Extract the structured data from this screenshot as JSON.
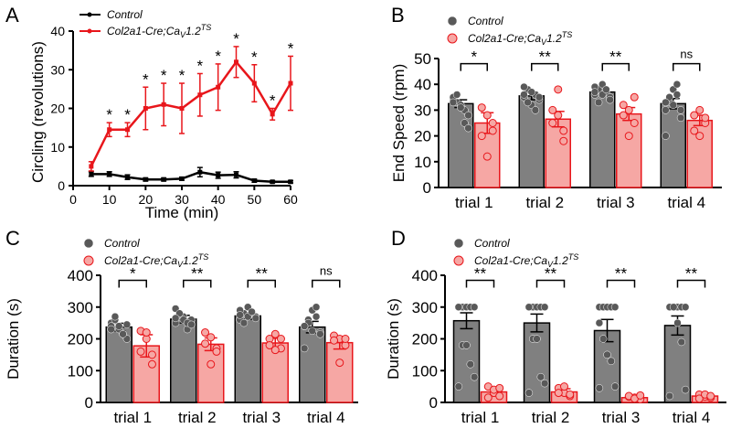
{
  "colors": {
    "control": "#000000",
    "mutant": "#e8161b",
    "control_bar": "#808080",
    "mutant_bar": "#f6a7a4",
    "dot_control": "#595959",
    "dot_mutant": "#e8161b"
  },
  "legend": {
    "control": "Control",
    "mutant": "Col2a1-Cre;Ca",
    "mutant_sub": "V",
    "mutant_rest": "1.2",
    "mutant_sup": "TS"
  },
  "chart_data": [
    {
      "panel": "A",
      "type": "line",
      "xlabel": "Time (min)",
      "ylabel": "Circling (revolutions)",
      "xlim": [
        0,
        60
      ],
      "ylim": [
        0,
        40
      ],
      "xticks": [
        "0",
        "10",
        "20",
        "30",
        "40",
        "50",
        "60"
      ],
      "yticks": [
        "0",
        "10",
        "20",
        "30",
        "40"
      ],
      "x": [
        5,
        10,
        15,
        20,
        25,
        30,
        35,
        40,
        45,
        50,
        55,
        60
      ],
      "series": [
        {
          "name": "Control",
          "values": [
            3,
            3,
            2.2,
            1.6,
            1.6,
            1.8,
            3.5,
            2.7,
            2.8,
            1.3,
            1,
            1
          ],
          "err": [
            0.6,
            0.6,
            0.6,
            0.4,
            0.4,
            0.4,
            1.2,
            0.8,
            0.8,
            0.4,
            0.3,
            0.3
          ]
        },
        {
          "name": "Col2a1-Cre;CaV1.2TS",
          "values": [
            5,
            14.5,
            14.5,
            20,
            21,
            20,
            23.5,
            25.5,
            32,
            26.5,
            18.5,
            26.5
          ],
          "err": [
            1.2,
            1.8,
            1.8,
            5.5,
            5.5,
            6.5,
            5.5,
            6,
            4,
            4.8,
            1.5,
            7
          ]
        }
      ],
      "annotations": [
        "",
        "*",
        "*",
        "*",
        "*",
        "*",
        "*",
        "*",
        "*",
        "*",
        "*",
        "*"
      ]
    },
    {
      "panel": "B",
      "type": "bar",
      "ylabel": "End Speed (rpm)",
      "ylim": [
        0,
        50
      ],
      "yticks": [
        "0",
        "10",
        "20",
        "30",
        "40",
        "50"
      ],
      "categories": [
        "trial 1",
        "trial 2",
        "trial 3",
        "trial 4"
      ],
      "series": [
        {
          "name": "Control",
          "values": [
            32.5,
            35.5,
            37,
            32.5
          ],
          "err": [
            1.5,
            1.5,
            1.2,
            2
          ]
        },
        {
          "name": "Col2a1-Cre;CaV1.2TS",
          "values": [
            25,
            26.5,
            28.5,
            26
          ],
          "err": [
            4,
            3,
            2.5,
            2
          ]
        }
      ],
      "significance": [
        "*",
        "**",
        "**",
        "ns"
      ],
      "points_control": [
        [
          34,
          33,
          32,
          30,
          28,
          35,
          36,
          31,
          25,
          23,
          33
        ],
        [
          35,
          38,
          32,
          36,
          34,
          39,
          33,
          37,
          30,
          35,
          36
        ],
        [
          36,
          38,
          40,
          37,
          35,
          39,
          33,
          36,
          38,
          34,
          37
        ],
        [
          30,
          33,
          38,
          36,
          27,
          20,
          35,
          32,
          40,
          30,
          33
        ]
      ],
      "points_mutant": [
        [
          31,
          28,
          22,
          20,
          12,
          25
        ],
        [
          30,
          28,
          22,
          25,
          38,
          18
        ],
        [
          32,
          30,
          25,
          28,
          20,
          35
        ],
        [
          28,
          30,
          25,
          22,
          20,
          27
        ]
      ]
    },
    {
      "panel": "C",
      "type": "bar",
      "ylabel": "Duration (s)",
      "ylim": [
        0,
        400
      ],
      "yticks": [
        "0",
        "100",
        "200",
        "300",
        "400"
      ],
      "categories": [
        "trial 1",
        "trial 2",
        "trial 3",
        "trial 4"
      ],
      "series": [
        {
          "name": "Control",
          "values": [
            237,
            262,
            272,
            237
          ],
          "err": [
            12,
            12,
            10,
            18
          ]
        },
        {
          "name": "Col2a1-Cre;CaV1.2TS",
          "values": [
            178,
            183,
            187,
            188
          ],
          "err": [
            35,
            20,
            15,
            20
          ]
        }
      ],
      "significance": [
        "*",
        "**",
        "**",
        "ns"
      ],
      "points_control": [
        [
          250,
          260,
          230,
          215,
          200,
          240,
          270,
          240,
          215,
          245,
          230
        ],
        [
          250,
          275,
          270,
          230,
          260,
          295,
          280,
          260,
          250,
          245,
          265
        ],
        [
          260,
          280,
          300,
          280,
          270,
          290,
          250,
          270,
          285,
          265,
          275
        ],
        [
          240,
          260,
          290,
          270,
          220,
          170,
          250,
          225,
          300,
          215,
          240
        ]
      ],
      "points_mutant": [
        [
          225,
          200,
          120,
          160,
          220,
          150
        ],
        [
          220,
          205,
          170,
          185,
          120,
          160
        ],
        [
          200,
          215,
          170,
          180,
          165,
          200
        ],
        [
          210,
          200,
          180,
          195,
          125,
          200
        ]
      ]
    },
    {
      "panel": "D",
      "type": "bar",
      "ylabel": "Duration (s)",
      "ylim": [
        0,
        400
      ],
      "yticks": [
        "0",
        "100",
        "200",
        "300",
        "400"
      ],
      "categories": [
        "trial 1",
        "trial 2",
        "trial 3",
        "trial 4"
      ],
      "series": [
        {
          "name": "Control",
          "values": [
            257,
            250,
            226,
            242
          ],
          "err": [
            25,
            28,
            35,
            30
          ]
        },
        {
          "name": "Col2a1-Cre;CaV1.2TS",
          "values": [
            33,
            33,
            15,
            20
          ],
          "err": [
            12,
            10,
            5,
            7
          ]
        }
      ],
      "significance": [
        "**",
        "**",
        "**",
        "**"
      ],
      "points_control": [
        [
          300,
          300,
          300,
          300,
          300,
          300,
          180,
          180,
          120,
          80,
          50
        ],
        [
          300,
          300,
          300,
          300,
          300,
          300,
          200,
          200,
          80,
          60,
          30
        ],
        [
          300,
          300,
          300,
          300,
          300,
          250,
          200,
          150,
          130,
          50,
          45
        ],
        [
          300,
          300,
          300,
          300,
          300,
          300,
          300,
          250,
          190,
          40,
          20
        ]
      ],
      "points_mutant": [
        [
          50,
          30,
          20,
          15,
          40,
          45
        ],
        [
          45,
          30,
          20,
          30,
          50,
          25
        ],
        [
          18,
          15,
          10,
          20,
          12,
          22
        ],
        [
          25,
          18,
          15,
          12,
          25,
          20
        ]
      ]
    }
  ]
}
